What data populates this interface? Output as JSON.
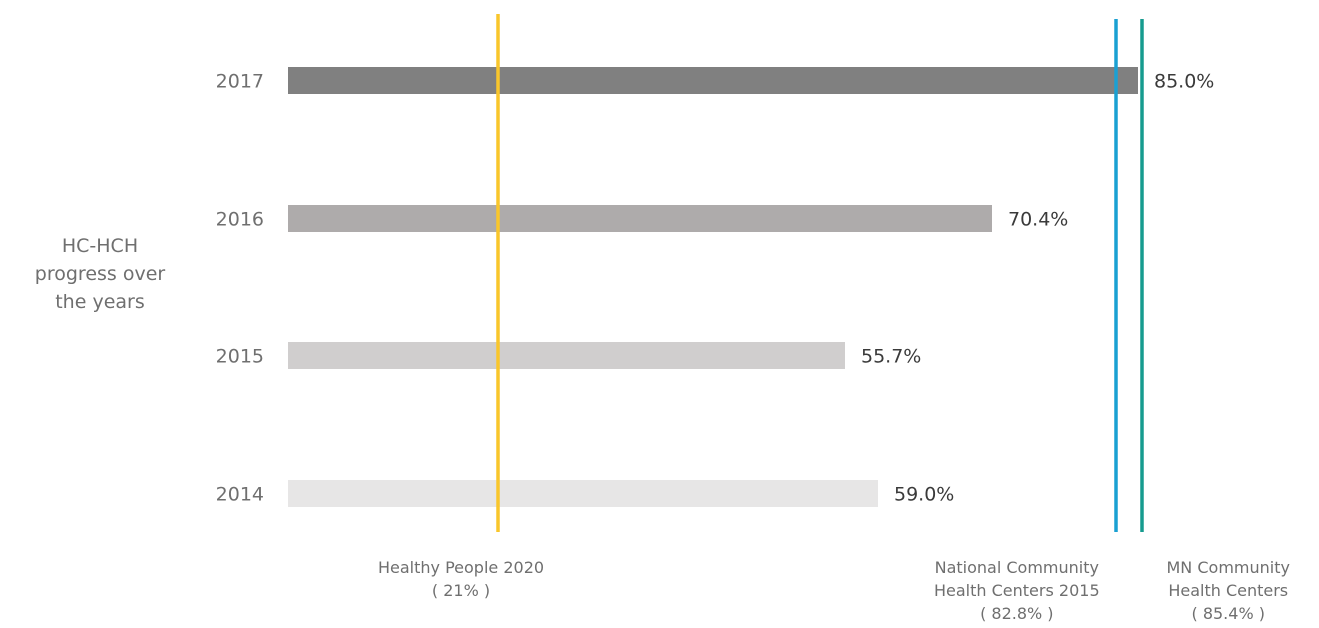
{
  "chart_data": {
    "type": "bar",
    "orientation": "horizontal",
    "categories": [
      "2017",
      "2016",
      "2015",
      "2014"
    ],
    "values": [
      85.0,
      70.4,
      55.7,
      59.0
    ],
    "value_labels": [
      "85.0%",
      "70.4%",
      "55.7%",
      "59.0%"
    ],
    "bar_colors": [
      "#808080",
      "#aeabab",
      "#d0cece",
      "#e7e6e6"
    ],
    "ylabel_lines": [
      "HC-HCH",
      "progress over",
      "the years"
    ],
    "xlim": [
      0,
      100
    ],
    "grid": false,
    "legend": "none",
    "reference_lines": [
      {
        "value": 21,
        "color": "#f9c62b",
        "label_lines": [
          "Healthy People 2020",
          "( 21% )"
        ]
      },
      {
        "value": 82.8,
        "color": "#1aa0d2",
        "label_lines": [
          "National Community",
          "Health  Centers 2015",
          "( 82.8% )"
        ]
      },
      {
        "value": 85.4,
        "color": "#169b8f",
        "label_lines": [
          "MN Community",
          "Health Centers",
          "( 85.4% )"
        ]
      }
    ]
  }
}
